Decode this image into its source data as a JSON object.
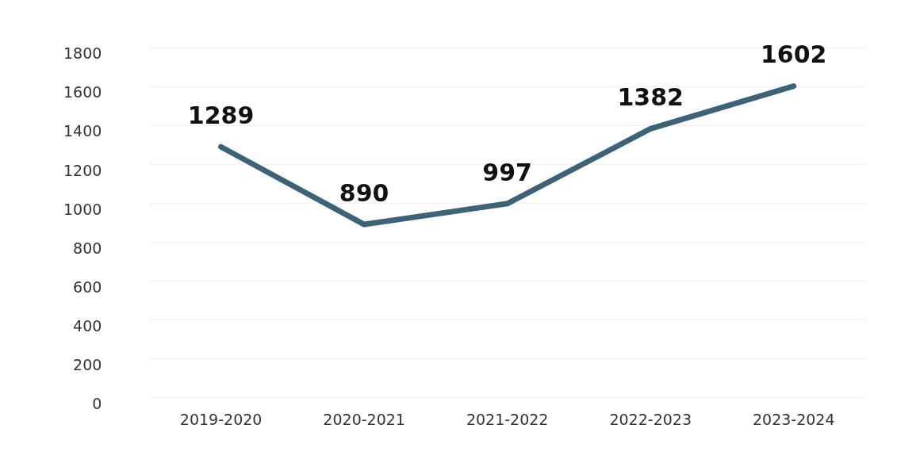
{
  "chart_data": {
    "type": "line",
    "categories": [
      "2019-2020",
      "2020-2021",
      "2021-2022",
      "2022-2023",
      "2023-2024"
    ],
    "series": [
      {
        "color": "#3e6377",
        "values": [
          1289,
          890,
          997,
          1382,
          1602
        ]
      }
    ],
    "ylim": [
      0,
      1800
    ],
    "yticks": [
      0,
      200,
      400,
      600,
      800,
      1000,
      1200,
      1400,
      1600,
      1800
    ],
    "grid": "y",
    "legend": false,
    "marker": "none",
    "line_style": "solid",
    "data_labels": true
  }
}
